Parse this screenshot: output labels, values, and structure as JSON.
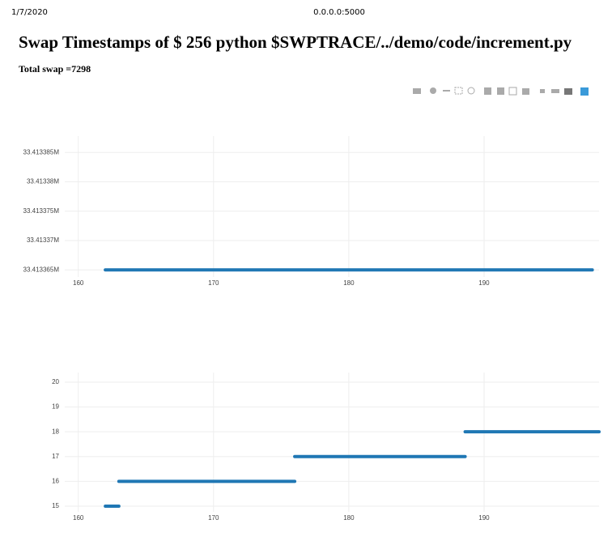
{
  "page": {
    "date": "1/7/2020",
    "url": "0.0.0.0:5000",
    "title": "Swap Timestamps of $ 256 python $SWPTRACE/../demo/code/increment.py",
    "subtitle": "Total swap =7298"
  },
  "chart_data": [
    {
      "type": "line",
      "grid": true,
      "xlim": [
        159,
        198.5
      ],
      "xticks": [
        160,
        170,
        180,
        190
      ],
      "ylim": [
        33413363.8,
        33413387.8
      ],
      "yticks": [
        {
          "value": 33413365,
          "label": "33.413365M"
        },
        {
          "value": 33413370,
          "label": "33.41337M"
        },
        {
          "value": 33413375,
          "label": "33.413375M"
        },
        {
          "value": 33413380,
          "label": "33.41338M"
        },
        {
          "value": 33413385,
          "label": "33.413385M"
        }
      ],
      "x": [
        162,
        163,
        164,
        165,
        166,
        167,
        168,
        169,
        170,
        171,
        172,
        173,
        174,
        175,
        176,
        177,
        178,
        179,
        180,
        181,
        182,
        183,
        184,
        185,
        186,
        187,
        188,
        189,
        190,
        191,
        192,
        193,
        194,
        195,
        196,
        197,
        198
      ],
      "series": [
        {
          "color": "#1f77b4",
          "values": [
            33413365,
            33413365,
            33413365,
            33413365,
            33413365,
            33413365,
            33413365,
            33413365,
            33413365,
            33413365,
            33413365,
            33413365,
            33413365,
            33413365,
            33413365,
            33413365,
            33413365,
            33413365,
            33413365,
            33413365,
            33413365,
            33413365,
            33413365,
            33413365,
            33413365,
            33413365,
            33413365,
            33413365,
            33413365,
            33413365,
            33413365,
            33413365,
            33413365,
            33413365,
            33413365,
            33413365,
            33413365
          ]
        }
      ]
    },
    {
      "type": "line",
      "grid": true,
      "xlim": [
        159,
        198.5
      ],
      "xticks": [
        160,
        170,
        180,
        190
      ],
      "ylim": [
        14.77,
        20.39
      ],
      "yticks": [
        15,
        16,
        17,
        18,
        19,
        20
      ],
      "x": [
        162,
        163,
        null,
        163,
        176,
        null,
        176,
        188.6,
        null,
        188.6,
        198.5
      ],
      "series": [
        {
          "color": "#1f77b4",
          "values": [
            15,
            15,
            null,
            16,
            16,
            null,
            17,
            17,
            null,
            18,
            18
          ]
        }
      ]
    }
  ]
}
